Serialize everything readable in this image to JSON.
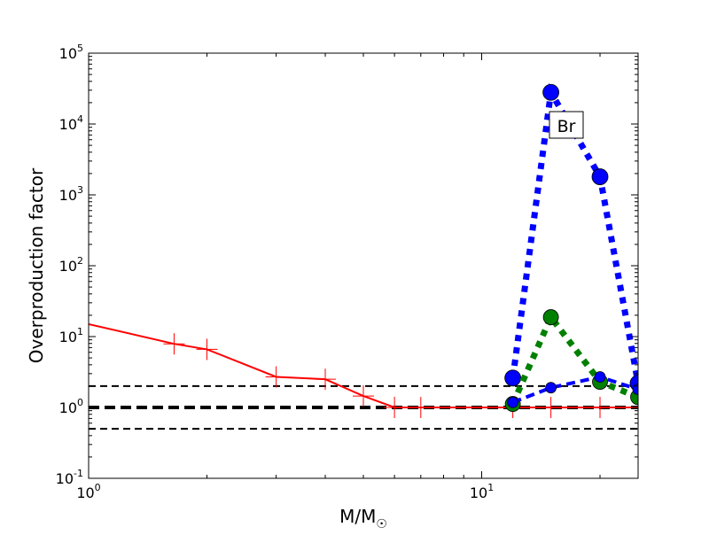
{
  "chart_data": {
    "type": "line",
    "xlabel": "M/M",
    "xlabel_symbol": "☉",
    "ylabel": "Overproduction factor",
    "xscale": "log",
    "yscale": "log",
    "xlim": [
      1,
      25
    ],
    "ylim": [
      0.1,
      100000
    ],
    "x_ticks": [
      {
        "value": 1,
        "base": "10",
        "exp": "0"
      },
      {
        "value": 10,
        "base": "10",
        "exp": "1"
      }
    ],
    "y_ticks": [
      {
        "value": 0.1,
        "base": "10",
        "exp": "-1"
      },
      {
        "value": 1,
        "base": "10",
        "exp": "0"
      },
      {
        "value": 10,
        "base": "10",
        "exp": "1"
      },
      {
        "value": 100,
        "base": "10",
        "exp": "2"
      },
      {
        "value": 1000,
        "base": "10",
        "exp": "3"
      },
      {
        "value": 10000,
        "base": "10",
        "exp": "4"
      },
      {
        "value": 100000,
        "base": "10",
        "exp": "5"
      }
    ],
    "annotation": "Br",
    "reference_lines": [
      {
        "y": 2,
        "color": "#000000",
        "style": "dashed",
        "weight": "thin"
      },
      {
        "y": 1,
        "color": "#000000",
        "style": "dashed",
        "weight": "thick"
      },
      {
        "y": 0.5,
        "color": "#000000",
        "style": "dashed",
        "weight": "thin"
      }
    ],
    "series": [
      {
        "color": "#ff0000",
        "style": "solid",
        "marker": "plus",
        "x": [
          1,
          1.65,
          2,
          3,
          4,
          5,
          6,
          7,
          12,
          15,
          20,
          25
        ],
        "y": [
          15,
          7.9,
          6.6,
          2.7,
          2.5,
          1.45,
          1.0,
          1.0,
          1.0,
          1.0,
          1.0,
          1.0
        ]
      },
      {
        "color": "#0000ff",
        "style": "dotted",
        "weight": "thick",
        "marker": "circle-large",
        "x": [
          12,
          15,
          20,
          25
        ],
        "y": [
          2.6,
          28000,
          1800,
          2.2
        ]
      },
      {
        "color": "#008000",
        "style": "dotted",
        "weight": "thick",
        "marker": "circle-medium",
        "x": [
          12,
          15,
          20,
          25
        ],
        "y": [
          1.12,
          18.8,
          2.3,
          1.4
        ]
      },
      {
        "color": "#0000ff",
        "style": "dashed",
        "weight": "medium",
        "marker": "circle-small",
        "x": [
          12,
          15,
          20,
          25
        ],
        "y": [
          1.18,
          1.9,
          2.7,
          1.8
        ]
      }
    ]
  }
}
